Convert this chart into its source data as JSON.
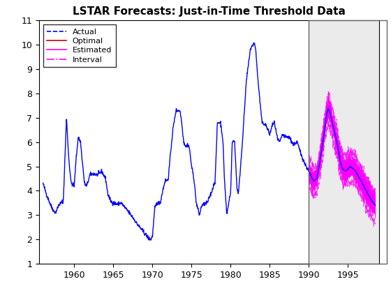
{
  "title": "LSTAR Forecasts: Just-in-Time Threshold Data",
  "xlim": [
    1955.5,
    1999
  ],
  "ylim": [
    1,
    11
  ],
  "xticks": [
    1960,
    1965,
    1970,
    1975,
    1980,
    1985,
    1990,
    1995
  ],
  "yticks": [
    1,
    2,
    3,
    4,
    5,
    6,
    7,
    8,
    9,
    10,
    11
  ],
  "forecast_start": 1990,
  "background_color": "#ffffff",
  "forecast_box_color": "#ebebeb",
  "actual_color": "#0000ff",
  "optimal_color": "#cc0000",
  "estimated_color": "#ff00ff",
  "interval_color": "#ff00ff",
  "title_fontsize": 11,
  "title_fontweight": "bold"
}
